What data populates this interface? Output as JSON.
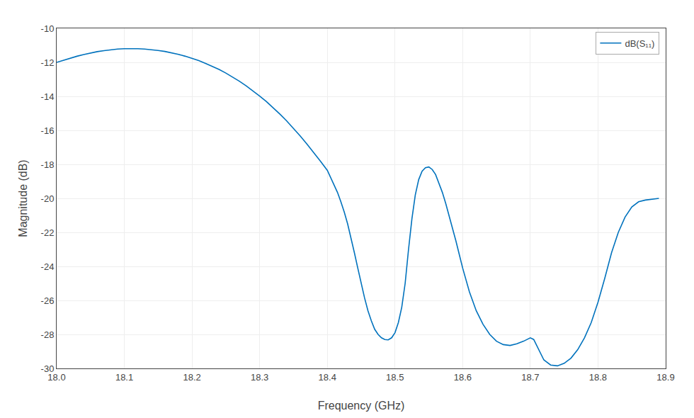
{
  "chart_data": {
    "type": "line",
    "xlabel": "Frequency (GHz)",
    "ylabel": "Magnitude (dB)",
    "xlim": [
      18.0,
      18.9
    ],
    "ylim": [
      -30,
      -10
    ],
    "xticks": [
      {
        "value": 18.0,
        "label": "18.0"
      },
      18.1,
      18.2,
      18.3,
      18.4,
      18.5,
      18.6,
      18.7,
      18.8,
      18.9
    ],
    "yticks": [
      -30,
      -28,
      -26,
      -24,
      -22,
      -20,
      -18,
      -16,
      -14,
      -12,
      -10
    ],
    "grid": true,
    "legend": "upper right",
    "x": [
      18.0,
      18.01,
      18.02,
      18.03,
      18.04,
      18.05,
      18.06,
      18.07,
      18.08,
      18.09,
      18.1,
      18.11,
      18.12,
      18.13,
      18.14,
      18.15,
      18.16,
      18.17,
      18.18,
      18.19,
      18.2,
      18.21,
      18.22,
      18.23,
      18.24,
      18.25,
      18.26,
      18.27,
      18.28,
      18.29,
      18.3,
      18.31,
      18.32,
      18.33,
      18.34,
      18.35,
      18.36,
      18.37,
      18.38,
      18.39,
      18.4,
      18.41,
      18.415,
      18.42,
      18.425,
      18.43,
      18.435,
      18.44,
      18.445,
      18.45,
      18.455,
      18.46,
      18.465,
      18.47,
      18.475,
      18.48,
      18.485,
      18.49,
      18.495,
      18.5,
      18.505,
      18.51,
      18.515,
      18.52,
      18.525,
      18.53,
      18.535,
      18.54,
      18.545,
      18.55,
      18.555,
      18.56,
      18.565,
      18.57,
      18.575,
      18.58,
      18.585,
      18.59,
      18.595,
      18.6,
      18.61,
      18.62,
      18.63,
      18.64,
      18.65,
      18.66,
      18.67,
      18.68,
      18.69,
      18.7,
      18.705,
      18.71,
      18.715,
      18.72,
      18.73,
      18.74,
      18.75,
      18.76,
      18.77,
      18.78,
      18.79,
      18.8,
      18.81,
      18.82,
      18.83,
      18.84,
      18.85,
      18.86,
      18.87,
      18.88,
      18.89
    ],
    "series": [
      {
        "name": "dB(S₁₁)",
        "color": "#0072BD",
        "values": [
          -12.0,
          -11.87,
          -11.75,
          -11.64,
          -11.54,
          -11.45,
          -11.37,
          -11.31,
          -11.26,
          -11.22,
          -11.2,
          -11.19,
          -11.2,
          -11.22,
          -11.25,
          -11.3,
          -11.36,
          -11.44,
          -11.53,
          -11.64,
          -11.76,
          -11.9,
          -12.06,
          -12.23,
          -12.42,
          -12.63,
          -12.86,
          -13.11,
          -13.38,
          -13.67,
          -13.98,
          -14.31,
          -14.67,
          -15.05,
          -15.45,
          -15.88,
          -16.33,
          -16.81,
          -17.3,
          -17.82,
          -18.35,
          -19.2,
          -19.65,
          -20.2,
          -20.8,
          -21.5,
          -22.3,
          -23.2,
          -24.1,
          -25.0,
          -25.85,
          -26.6,
          -27.2,
          -27.7,
          -28.0,
          -28.2,
          -28.3,
          -28.32,
          -28.2,
          -27.9,
          -27.3,
          -26.4,
          -25.0,
          -23.0,
          -21.2,
          -19.8,
          -18.9,
          -18.4,
          -18.2,
          -18.15,
          -18.3,
          -18.6,
          -19.1,
          -19.65,
          -20.3,
          -21.0,
          -21.75,
          -22.5,
          -23.3,
          -24.1,
          -25.5,
          -26.6,
          -27.4,
          -28.0,
          -28.4,
          -28.6,
          -28.65,
          -28.55,
          -28.4,
          -28.2,
          -28.3,
          -28.7,
          -29.1,
          -29.5,
          -29.8,
          -29.85,
          -29.7,
          -29.4,
          -28.9,
          -28.2,
          -27.3,
          -26.1,
          -24.7,
          -23.2,
          -22.0,
          -21.1,
          -20.5,
          -20.2,
          -20.1,
          -20.05,
          -20.0
        ]
      }
    ]
  }
}
